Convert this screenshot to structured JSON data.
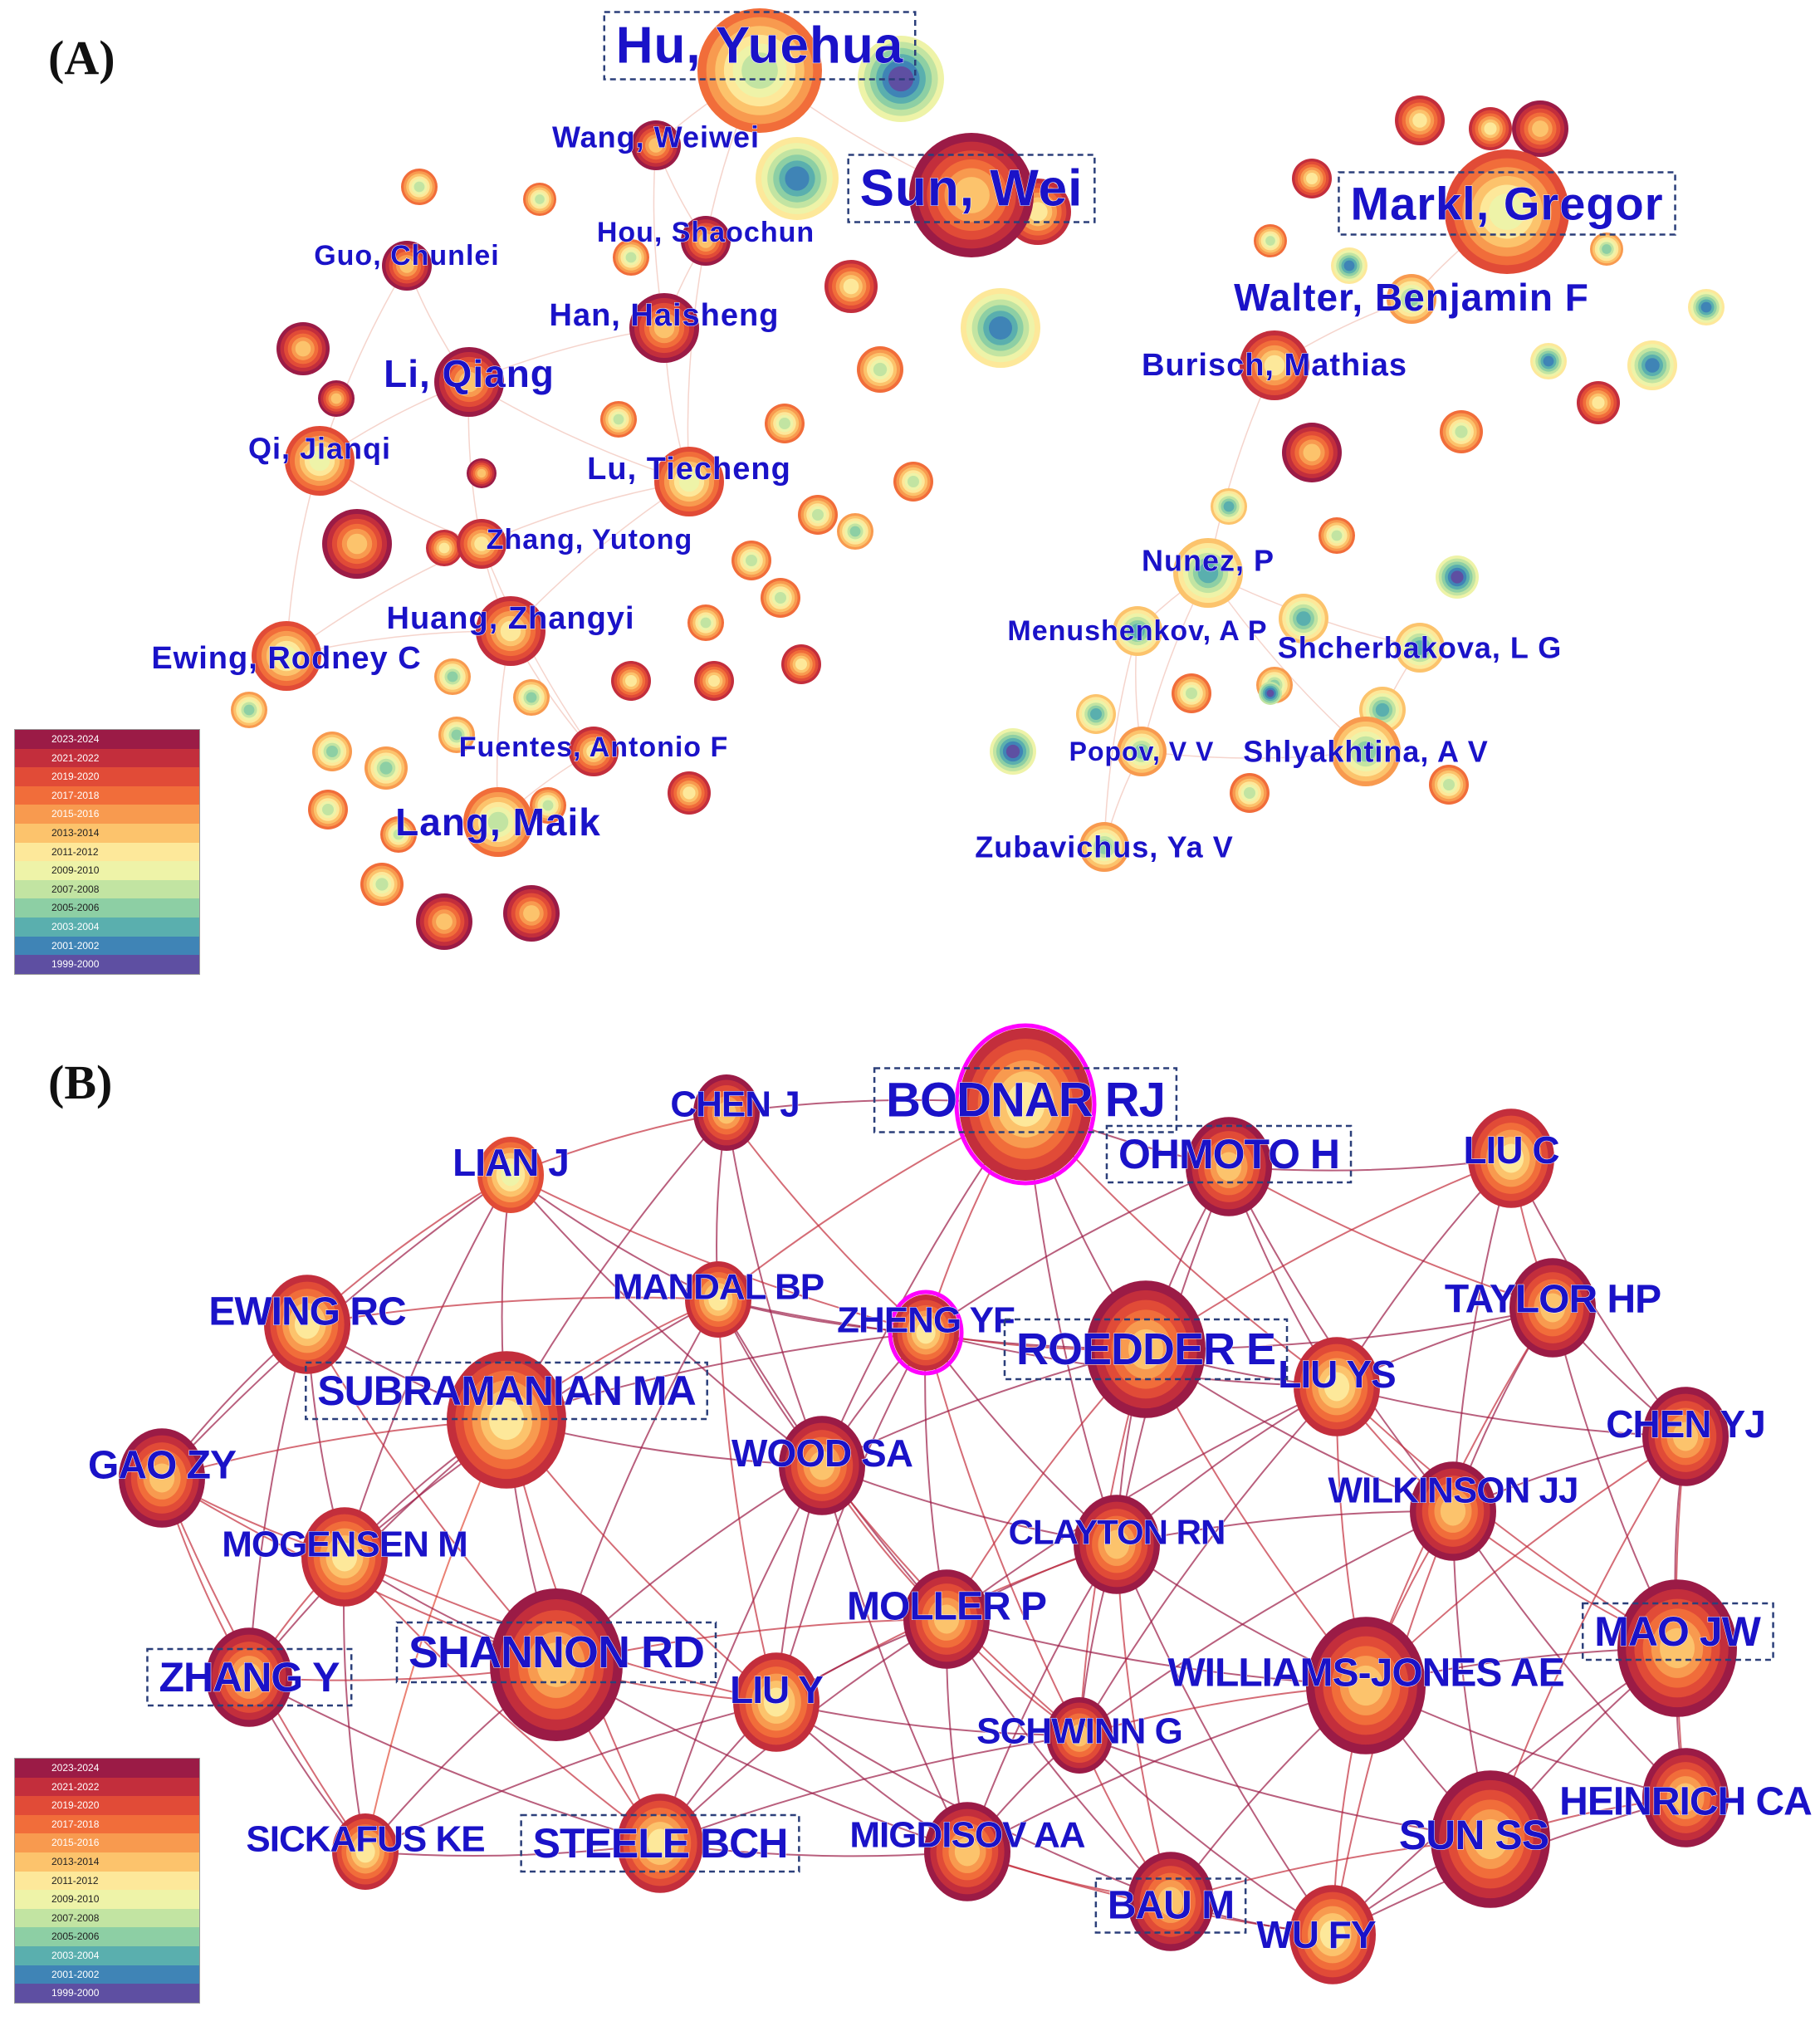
{
  "panels": [
    {
      "id": "A",
      "label": "(A)",
      "highlighted": [
        "Hu, Yuehua",
        "Sun, Wei",
        "Markl, Gregor"
      ],
      "nodes": [
        {
          "label": "Hu, Yuehua",
          "size": 5,
          "year": "2017-2018"
        },
        {
          "label": "Sun, Wei",
          "size": 5,
          "year": "2023-2024"
        },
        {
          "label": "Markl, Gregor",
          "size": 5,
          "year": "2019-2020"
        },
        {
          "label": "Wang, Weiwei",
          "size": 3,
          "year": "2023-2024"
        },
        {
          "label": "Hou, Shaochun",
          "size": 3,
          "year": "2023-2024"
        },
        {
          "label": "Guo, Chunlei",
          "size": 3,
          "year": "2023-2024"
        },
        {
          "label": "Han, Haisheng",
          "size": 4,
          "year": "2023-2024"
        },
        {
          "label": "Li, Qiang",
          "size": 4,
          "year": "2023-2024"
        },
        {
          "label": "Qi, Jianqi",
          "size": 4,
          "year": "2019-2020"
        },
        {
          "label": "Lu, Tiecheng",
          "size": 4,
          "year": "2019-2020"
        },
        {
          "label": "Zhang, Yutong",
          "size": 3,
          "year": "2021-2022"
        },
        {
          "label": "Huang, Zhangyi",
          "size": 4,
          "year": "2021-2022"
        },
        {
          "label": "Ewing, Rodney C",
          "size": 4,
          "year": "2019-2020"
        },
        {
          "label": "Fuentes, Antonio F",
          "size": 3,
          "year": "2021-2022"
        },
        {
          "label": "Lang, Maik",
          "size": 4,
          "year": "2017-2018"
        },
        {
          "label": "Walter, Benjamin F",
          "size": 3,
          "year": "2015-2016"
        },
        {
          "label": "Burisch, Mathias",
          "size": 4,
          "year": "2021-2022"
        },
        {
          "label": "Nunez, P",
          "size": 4,
          "year": "2013-2014"
        },
        {
          "label": "Menushenkov, A P",
          "size": 3,
          "year": "2013-2014"
        },
        {
          "label": "Shcherbakova, L G",
          "size": 3,
          "year": "2013-2014"
        },
        {
          "label": "Popov, V V",
          "size": 3,
          "year": "2015-2016"
        },
        {
          "label": "Shlyakhtina, A V",
          "size": 4,
          "year": "2015-2016"
        },
        {
          "label": "Zubavichus, Ya V",
          "size": 3,
          "year": "2015-2016"
        }
      ]
    },
    {
      "id": "B",
      "label": "(B)",
      "highlighted": [
        "BODNAR RJ",
        "OHMOTO H",
        "ROEDDER E",
        "SUBRAMANIAN MA",
        "SHANNON RD",
        "ZHANG Y",
        "STEELE BCH",
        "MAO JW",
        "BAU M"
      ],
      "nodes": [
        {
          "label": "BODNAR RJ",
          "size": 6,
          "year": "2021-2022",
          "burst": true
        },
        {
          "label": "OHMOTO H",
          "size": 4,
          "year": "2023-2024"
        },
        {
          "label": "LIU C",
          "size": 4,
          "year": "2021-2022"
        },
        {
          "label": "CHEN J",
          "size": 3,
          "year": "2023-2024"
        },
        {
          "label": "LIAN J",
          "size": 3,
          "year": "2019-2020"
        },
        {
          "label": "MANDAL BP",
          "size": 3,
          "year": "2021-2022"
        },
        {
          "label": "EWING RC",
          "size": 4,
          "year": "2021-2022"
        },
        {
          "label": "ZHENG YF",
          "size": 3,
          "year": "2021-2022",
          "burst": true
        },
        {
          "label": "ROEDDER E",
          "size": 5,
          "year": "2023-2024"
        },
        {
          "label": "TAYLOR HP",
          "size": 4,
          "year": "2023-2024"
        },
        {
          "label": "SUBRAMANIAN MA",
          "size": 5,
          "year": "2021-2022"
        },
        {
          "label": "LIU YS",
          "size": 4,
          "year": "2021-2022"
        },
        {
          "label": "GAO ZY",
          "size": 4,
          "year": "2023-2024"
        },
        {
          "label": "WOOD SA",
          "size": 4,
          "year": "2023-2024"
        },
        {
          "label": "CHEN YJ",
          "size": 4,
          "year": "2023-2024"
        },
        {
          "label": "MOGENSEN M",
          "size": 4,
          "year": "2021-2022"
        },
        {
          "label": "WILKINSON JJ",
          "size": 4,
          "year": "2023-2024"
        },
        {
          "label": "CLAYTON RN",
          "size": 4,
          "year": "2023-2024"
        },
        {
          "label": "MOLLER P",
          "size": 4,
          "year": "2023-2024"
        },
        {
          "label": "ZHANG Y",
          "size": 4,
          "year": "2023-2024"
        },
        {
          "label": "SHANNON RD",
          "size": 6,
          "year": "2023-2024"
        },
        {
          "label": "MAO JW",
          "size": 5,
          "year": "2023-2024"
        },
        {
          "label": "LIU Y",
          "size": 4,
          "year": "2021-2022"
        },
        {
          "label": "WILLIAMS-JONES AE",
          "size": 5,
          "year": "2023-2024"
        },
        {
          "label": "SCHWINN G",
          "size": 3,
          "year": "2023-2024"
        },
        {
          "label": "HEINRICH CA",
          "size": 4,
          "year": "2023-2024"
        },
        {
          "label": "SICKAFUS KE",
          "size": 3,
          "year": "2021-2022"
        },
        {
          "label": "STEELE BCH",
          "size": 4,
          "year": "2021-2022"
        },
        {
          "label": "MIGDISOV AA",
          "size": 4,
          "year": "2023-2024"
        },
        {
          "label": "SUN SS",
          "size": 5,
          "year": "2023-2024"
        },
        {
          "label": "BAU M",
          "size": 4,
          "year": "2023-2024"
        },
        {
          "label": "WU FY",
          "size": 4,
          "year": "2021-2022"
        }
      ]
    }
  ],
  "legend": {
    "entries": [
      {
        "label": "2023-2024",
        "color": "#9b1b46"
      },
      {
        "label": "2021-2022",
        "color": "#c32e3c"
      },
      {
        "label": "2019-2020",
        "color": "#e14b37"
      },
      {
        "label": "2017-2018",
        "color": "#f16d3a"
      },
      {
        "label": "2015-2016",
        "color": "#f89a4f"
      },
      {
        "label": "2013-2014",
        "color": "#fcc36c"
      },
      {
        "label": "2011-2012",
        "color": "#fde89a"
      },
      {
        "label": "2009-2010",
        "color": "#eef3a8"
      },
      {
        "label": "2007-2008",
        "color": "#c2e4a2"
      },
      {
        "label": "2005-2006",
        "color": "#8dcfa4"
      },
      {
        "label": "2003-2004",
        "color": "#5aafae"
      },
      {
        "label": "2001-2002",
        "color": "#3f84b6"
      },
      {
        "label": "1999-2000",
        "color": "#5e4fa2"
      }
    ]
  },
  "colors": {
    "label_text": "#1a12c8",
    "burst_ring": "#ff00ff",
    "edge": "#e8a08e",
    "highlight_box": "#2b3f7a"
  }
}
